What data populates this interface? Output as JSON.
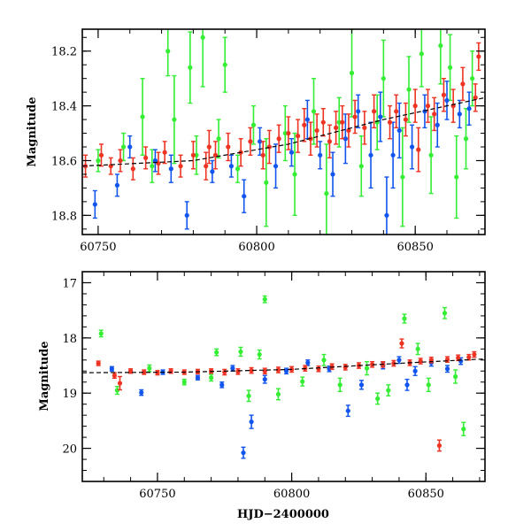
{
  "chart_data": [
    {
      "type": "scatter",
      "xlabel": "",
      "ylabel": "Magnitude",
      "xlim": [
        60745,
        60872
      ],
      "ylim": [
        18.87,
        18.12
      ],
      "y_inverted": true,
      "x_ticks": [
        60750,
        60800,
        60850
      ],
      "y_ticks": [
        18.2,
        18.4,
        18.6,
        18.8
      ],
      "grid": false,
      "error_bars": true,
      "series": [
        {
          "color": "#33ee33",
          "points": [
            [
              60750,
              18.6,
              0.04
            ],
            [
              60758,
              18.55,
              0.05
            ],
            [
              60764,
              18.44,
              0.14
            ],
            [
              60767,
              18.62,
              0.06
            ],
            [
              60772,
              18.2,
              0.09
            ],
            [
              60774,
              18.45,
              0.16
            ],
            [
              60779,
              18.26,
              0.13
            ],
            [
              60781,
              18.58,
              0.07
            ],
            [
              60783,
              18.15,
              0.18
            ],
            [
              60788,
              18.52,
              0.07
            ],
            [
              60790,
              18.25,
              0.1
            ],
            [
              60794,
              18.63,
              0.05
            ],
            [
              60799,
              18.47,
              0.07
            ],
            [
              60803,
              18.68,
              0.16
            ],
            [
              60809,
              18.5,
              0.1
            ],
            [
              60812,
              18.65,
              0.15
            ],
            [
              60818,
              18.42,
              0.12
            ],
            [
              60822,
              18.72,
              0.18
            ],
            [
              60826,
              18.46,
              0.09
            ],
            [
              60830,
              18.28,
              0.16
            ],
            [
              60833,
              18.62,
              0.11
            ],
            [
              60838,
              18.46,
              0.1
            ],
            [
              60840,
              18.3,
              0.14
            ],
            [
              60846,
              18.66,
              0.18
            ],
            [
              60848,
              18.34,
              0.12
            ],
            [
              60852,
              18.21,
              0.12
            ],
            [
              60855,
              18.58,
              0.14
            ],
            [
              60858,
              18.18,
              0.14
            ],
            [
              60861,
              18.26,
              0.12
            ],
            [
              60863,
              18.66,
              0.15
            ],
            [
              60866,
              18.52,
              0.11
            ],
            [
              60868,
              18.3,
              0.1
            ]
          ]
        },
        {
          "color": "#1155ee",
          "points": [
            [
              60749,
              18.76,
              0.05
            ],
            [
              60756,
              18.69,
              0.04
            ],
            [
              60760,
              18.55,
              0.04
            ],
            [
              60768,
              18.6,
              0.04
            ],
            [
              60773,
              18.63,
              0.05
            ],
            [
              60778,
              18.8,
              0.05
            ],
            [
              60786,
              18.64,
              0.04
            ],
            [
              60792,
              18.62,
              0.04
            ],
            [
              60796,
              18.73,
              0.06
            ],
            [
              60801,
              18.53,
              0.05
            ],
            [
              60806,
              18.62,
              0.08
            ],
            [
              60811,
              18.57,
              0.05
            ],
            [
              60816,
              18.45,
              0.07
            ],
            [
              60820,
              18.58,
              0.05
            ],
            [
              60824,
              18.65,
              0.08
            ],
            [
              60828,
              18.52,
              0.09
            ],
            [
              60832,
              18.42,
              0.06
            ],
            [
              60836,
              18.58,
              0.12
            ],
            [
              60839,
              18.44,
              0.09
            ],
            [
              60841,
              18.8,
              0.14
            ],
            [
              60843,
              18.58,
              0.12
            ],
            [
              60845,
              18.49,
              0.1
            ],
            [
              60849,
              18.55,
              0.08
            ],
            [
              60853,
              18.42,
              0.06
            ],
            [
              60857,
              18.47,
              0.08
            ],
            [
              60860,
              18.38,
              0.07
            ],
            [
              60864,
              18.43,
              0.05
            ],
            [
              60867,
              18.41,
              0.06
            ]
          ]
        },
        {
          "color": "#ee3322",
          "points": [
            [
              60746,
              18.62,
              0.04
            ],
            [
              60751,
              18.58,
              0.04
            ],
            [
              60754,
              18.62,
              0.03
            ],
            [
              60757,
              18.6,
              0.04
            ],
            [
              60761,
              18.63,
              0.04
            ],
            [
              60765,
              18.59,
              0.04
            ],
            [
              60769,
              18.61,
              0.04
            ],
            [
              60771,
              18.57,
              0.04
            ],
            [
              60776,
              18.62,
              0.04
            ],
            [
              60780,
              18.58,
              0.05
            ],
            [
              60784,
              18.62,
              0.05
            ],
            [
              60785,
              18.55,
              0.06
            ],
            [
              60787,
              18.58,
              0.05
            ],
            [
              60791,
              18.55,
              0.05
            ],
            [
              60795,
              18.57,
              0.05
            ],
            [
              60798,
              18.53,
              0.05
            ],
            [
              60802,
              18.58,
              0.05
            ],
            [
              60804,
              18.55,
              0.06
            ],
            [
              60807,
              18.52,
              0.05
            ],
            [
              60810,
              18.5,
              0.06
            ],
            [
              60813,
              18.51,
              0.06
            ],
            [
              60815,
              18.47,
              0.06
            ],
            [
              60817,
              18.52,
              0.06
            ],
            [
              60819,
              18.49,
              0.06
            ],
            [
              60821,
              18.46,
              0.05
            ],
            [
              60823,
              18.53,
              0.06
            ],
            [
              60825,
              18.48,
              0.06
            ],
            [
              60827,
              18.46,
              0.06
            ],
            [
              60829,
              18.49,
              0.06
            ],
            [
              60831,
              18.44,
              0.06
            ],
            [
              60834,
              18.48,
              0.06
            ],
            [
              60837,
              18.42,
              0.06
            ],
            [
              60842,
              18.46,
              0.06
            ],
            [
              60844,
              18.42,
              0.06
            ],
            [
              60847,
              18.45,
              0.06
            ],
            [
              60850,
              18.4,
              0.06
            ],
            [
              60851,
              18.56,
              0.08
            ],
            [
              60854,
              18.4,
              0.06
            ],
            [
              60856,
              18.43,
              0.06
            ],
            [
              60859,
              18.36,
              0.06
            ],
            [
              60862,
              18.4,
              0.06
            ],
            [
              60865,
              18.32,
              0.06
            ],
            [
              60869,
              18.37,
              0.05
            ],
            [
              60870,
              18.22,
              0.05
            ]
          ]
        }
      ],
      "trend_line": [
        [
          60745,
          18.62
        ],
        [
          60780,
          18.6
        ],
        [
          60810,
          18.54
        ],
        [
          60840,
          18.45
        ],
        [
          60872,
          18.37
        ]
      ]
    },
    {
      "type": "scatter",
      "xlabel": "HJD−2400000",
      "ylabel": "Magnitude",
      "xlim": [
        60722,
        60872
      ],
      "ylim": [
        20.6,
        16.8
      ],
      "y_inverted": true,
      "x_ticks": [
        60750,
        60800,
        60850
      ],
      "y_ticks": [
        17,
        18,
        19,
        20
      ],
      "grid": false,
      "error_bars": true,
      "series": [
        {
          "color": "#33ee33",
          "points": [
            [
              60729,
              17.92,
              0.06
            ],
            [
              60735,
              18.95,
              0.07
            ],
            [
              60747,
              18.55,
              0.06
            ],
            [
              60760,
              18.8,
              0.05
            ],
            [
              60770,
              18.72,
              0.06
            ],
            [
              60772,
              18.26,
              0.06
            ],
            [
              60781,
              18.25,
              0.08
            ],
            [
              60784,
              19.05,
              0.1
            ],
            [
              60788,
              18.3,
              0.08
            ],
            [
              60790,
              17.3,
              0.06
            ],
            [
              60795,
              19.02,
              0.1
            ],
            [
              60804,
              18.79,
              0.08
            ],
            [
              60812,
              18.4,
              0.1
            ],
            [
              60818,
              18.85,
              0.12
            ],
            [
              60828,
              18.55,
              0.12
            ],
            [
              60832,
              19.1,
              0.1
            ],
            [
              60836,
              18.95,
              0.1
            ],
            [
              60842,
              17.65,
              0.08
            ],
            [
              60847,
              18.2,
              0.1
            ],
            [
              60851,
              18.85,
              0.12
            ],
            [
              60857,
              17.55,
              0.1
            ],
            [
              60861,
              18.7,
              0.12
            ],
            [
              60864,
              19.65,
              0.12
            ]
          ]
        },
        {
          "color": "#1155ee",
          "points": [
            [
              60733,
              18.56,
              0.04
            ],
            [
              60744,
              18.99,
              0.05
            ],
            [
              60752,
              18.62,
              0.04
            ],
            [
              60765,
              18.72,
              0.04
            ],
            [
              60774,
              18.85,
              0.05
            ],
            [
              60778,
              18.55,
              0.05
            ],
            [
              60782,
              20.08,
              0.1
            ],
            [
              60785,
              19.52,
              0.12
            ],
            [
              60790,
              18.75,
              0.07
            ],
            [
              60798,
              18.6,
              0.05
            ],
            [
              60806,
              18.45,
              0.05
            ],
            [
              60814,
              18.56,
              0.05
            ],
            [
              60821,
              19.32,
              0.1
            ],
            [
              60826,
              18.85,
              0.08
            ],
            [
              60834,
              18.5,
              0.06
            ],
            [
              60840,
              18.4,
              0.06
            ],
            [
              60843,
              18.85,
              0.1
            ],
            [
              60846,
              18.6,
              0.08
            ],
            [
              60852,
              18.45,
              0.06
            ],
            [
              60858,
              18.56,
              0.06
            ],
            [
              60863,
              18.42,
              0.06
            ]
          ]
        },
        {
          "color": "#ee3322",
          "points": [
            [
              60728,
              18.46,
              0.04
            ],
            [
              60734,
              18.68,
              0.05
            ],
            [
              60736,
              18.82,
              0.12
            ],
            [
              60740,
              18.6,
              0.04
            ],
            [
              60745,
              18.62,
              0.04
            ],
            [
              60750,
              18.63,
              0.04
            ],
            [
              60755,
              18.6,
              0.04
            ],
            [
              60760,
              18.62,
              0.04
            ],
            [
              60765,
              18.61,
              0.04
            ],
            [
              60770,
              18.6,
              0.04
            ],
            [
              60775,
              18.62,
              0.05
            ],
            [
              60780,
              18.61,
              0.05
            ],
            [
              60785,
              18.59,
              0.05
            ],
            [
              60790,
              18.6,
              0.05
            ],
            [
              60795,
              18.58,
              0.05
            ],
            [
              60800,
              18.57,
              0.05
            ],
            [
              60805,
              18.55,
              0.05
            ],
            [
              60810,
              18.56,
              0.05
            ],
            [
              60815,
              18.52,
              0.05
            ],
            [
              60820,
              18.53,
              0.05
            ],
            [
              60825,
              18.5,
              0.05
            ],
            [
              60830,
              18.48,
              0.05
            ],
            [
              60834,
              18.48,
              0.05
            ],
            [
              60838,
              18.46,
              0.05
            ],
            [
              60841,
              18.1,
              0.08
            ],
            [
              60844,
              18.45,
              0.05
            ],
            [
              60848,
              18.42,
              0.05
            ],
            [
              60852,
              18.4,
              0.05
            ],
            [
              60855,
              19.95,
              0.1
            ],
            [
              60858,
              18.39,
              0.05
            ],
            [
              60862,
              18.36,
              0.05
            ],
            [
              60866,
              18.35,
              0.05
            ],
            [
              60868,
              18.3,
              0.05
            ]
          ]
        }
      ],
      "trend_line": [
        [
          60722,
          18.63
        ],
        [
          60760,
          18.62
        ],
        [
          60800,
          18.57
        ],
        [
          60840,
          18.46
        ],
        [
          60872,
          18.38
        ]
      ]
    }
  ]
}
